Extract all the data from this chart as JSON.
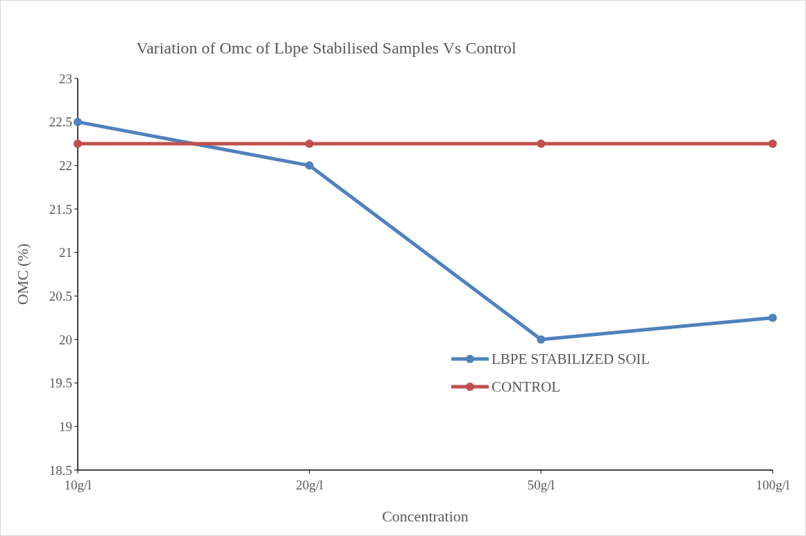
{
  "chart_data": {
    "type": "line",
    "title": "Variation of Omc of Lbpe Stabilised Samples Vs Control",
    "xlabel": "Concentration",
    "ylabel": "OMC (%)",
    "categories": [
      "10g/l",
      "20g/l",
      "50g/l",
      "100g/l"
    ],
    "series": [
      {
        "name": "LBPE STABILIZED SOIL",
        "color": "#4f81bd",
        "values": [
          22.5,
          22,
          20,
          20.25
        ]
      },
      {
        "name": "CONTROL",
        "color": "#c0504d",
        "values": [
          22.25,
          22.25,
          22.25,
          22.25
        ]
      }
    ],
    "ylim": [
      18.5,
      23
    ],
    "yticks": [
      {
        "value": 18.5,
        "label": "18.5"
      },
      19,
      {
        "value": 19.5,
        "label": "19.5"
      },
      20,
      {
        "value": 20.5,
        "label": "20.5"
      },
      21,
      {
        "value": 21.5,
        "label": "21.5"
      },
      22,
      {
        "value": 22.5,
        "label": "22.5"
      },
      23
    ],
    "grid": false,
    "legend": "right",
    "marker": "circle",
    "line_style": "solid"
  }
}
